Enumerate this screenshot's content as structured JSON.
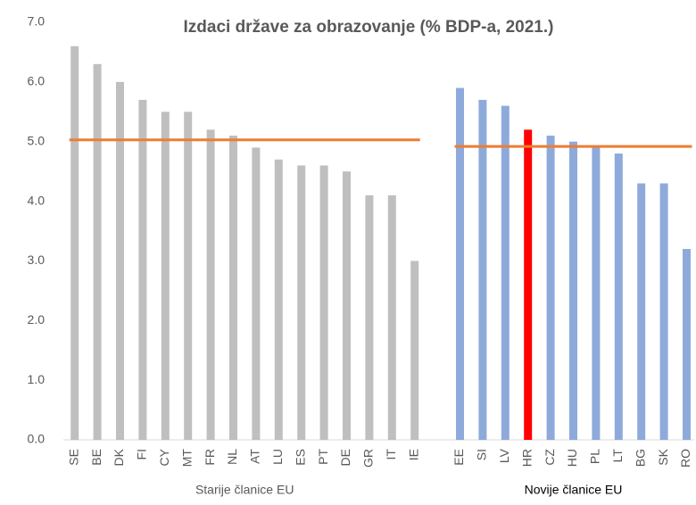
{
  "chart_data": {
    "type": "bar",
    "title": "Izdaci države za obrazovanje (% BDP-a, 2021.)",
    "ylim": [
      0,
      7
    ],
    "yticks": [
      {
        "value": 0,
        "label": "0.0"
      },
      {
        "value": 1,
        "label": "1.0"
      },
      {
        "value": 2,
        "label": "2.0"
      },
      {
        "value": 3,
        "label": "3.0"
      },
      {
        "value": 4,
        "label": "4.0"
      },
      {
        "value": 5,
        "label": "5.0"
      },
      {
        "value": 6,
        "label": "6.0"
      },
      {
        "value": 7,
        "label": "7.0"
      }
    ],
    "grid": false,
    "groups": [
      {
        "label": "Starije članice EU",
        "color": "#bfbfbf",
        "average": 5.03,
        "average_color": "#ed7d31",
        "categories": [
          "SE",
          "BE",
          "DK",
          "FI",
          "CY",
          "MT",
          "FR",
          "NL",
          "AT",
          "LU",
          "ES",
          "PT",
          "DE",
          "GR",
          "IT",
          "IE"
        ],
        "values": [
          6.6,
          6.3,
          6.0,
          5.7,
          5.5,
          5.5,
          5.2,
          5.1,
          4.9,
          4.7,
          4.6,
          4.6,
          4.5,
          4.1,
          4.1,
          3.0
        ]
      },
      {
        "label": "Novije članice EU",
        "color": "#8eaadb",
        "average": 4.92,
        "average_color": "#ed7d31",
        "highlight": {
          "category": "HR",
          "color": "#ff0000"
        },
        "categories": [
          "EE",
          "SI",
          "LV",
          "HR",
          "CZ",
          "HU",
          "PL",
          "LT",
          "BG",
          "SK",
          "RO"
        ],
        "values": [
          5.9,
          5.7,
          5.6,
          5.2,
          5.1,
          5.0,
          4.9,
          4.8,
          4.3,
          4.3,
          3.2
        ]
      }
    ]
  }
}
